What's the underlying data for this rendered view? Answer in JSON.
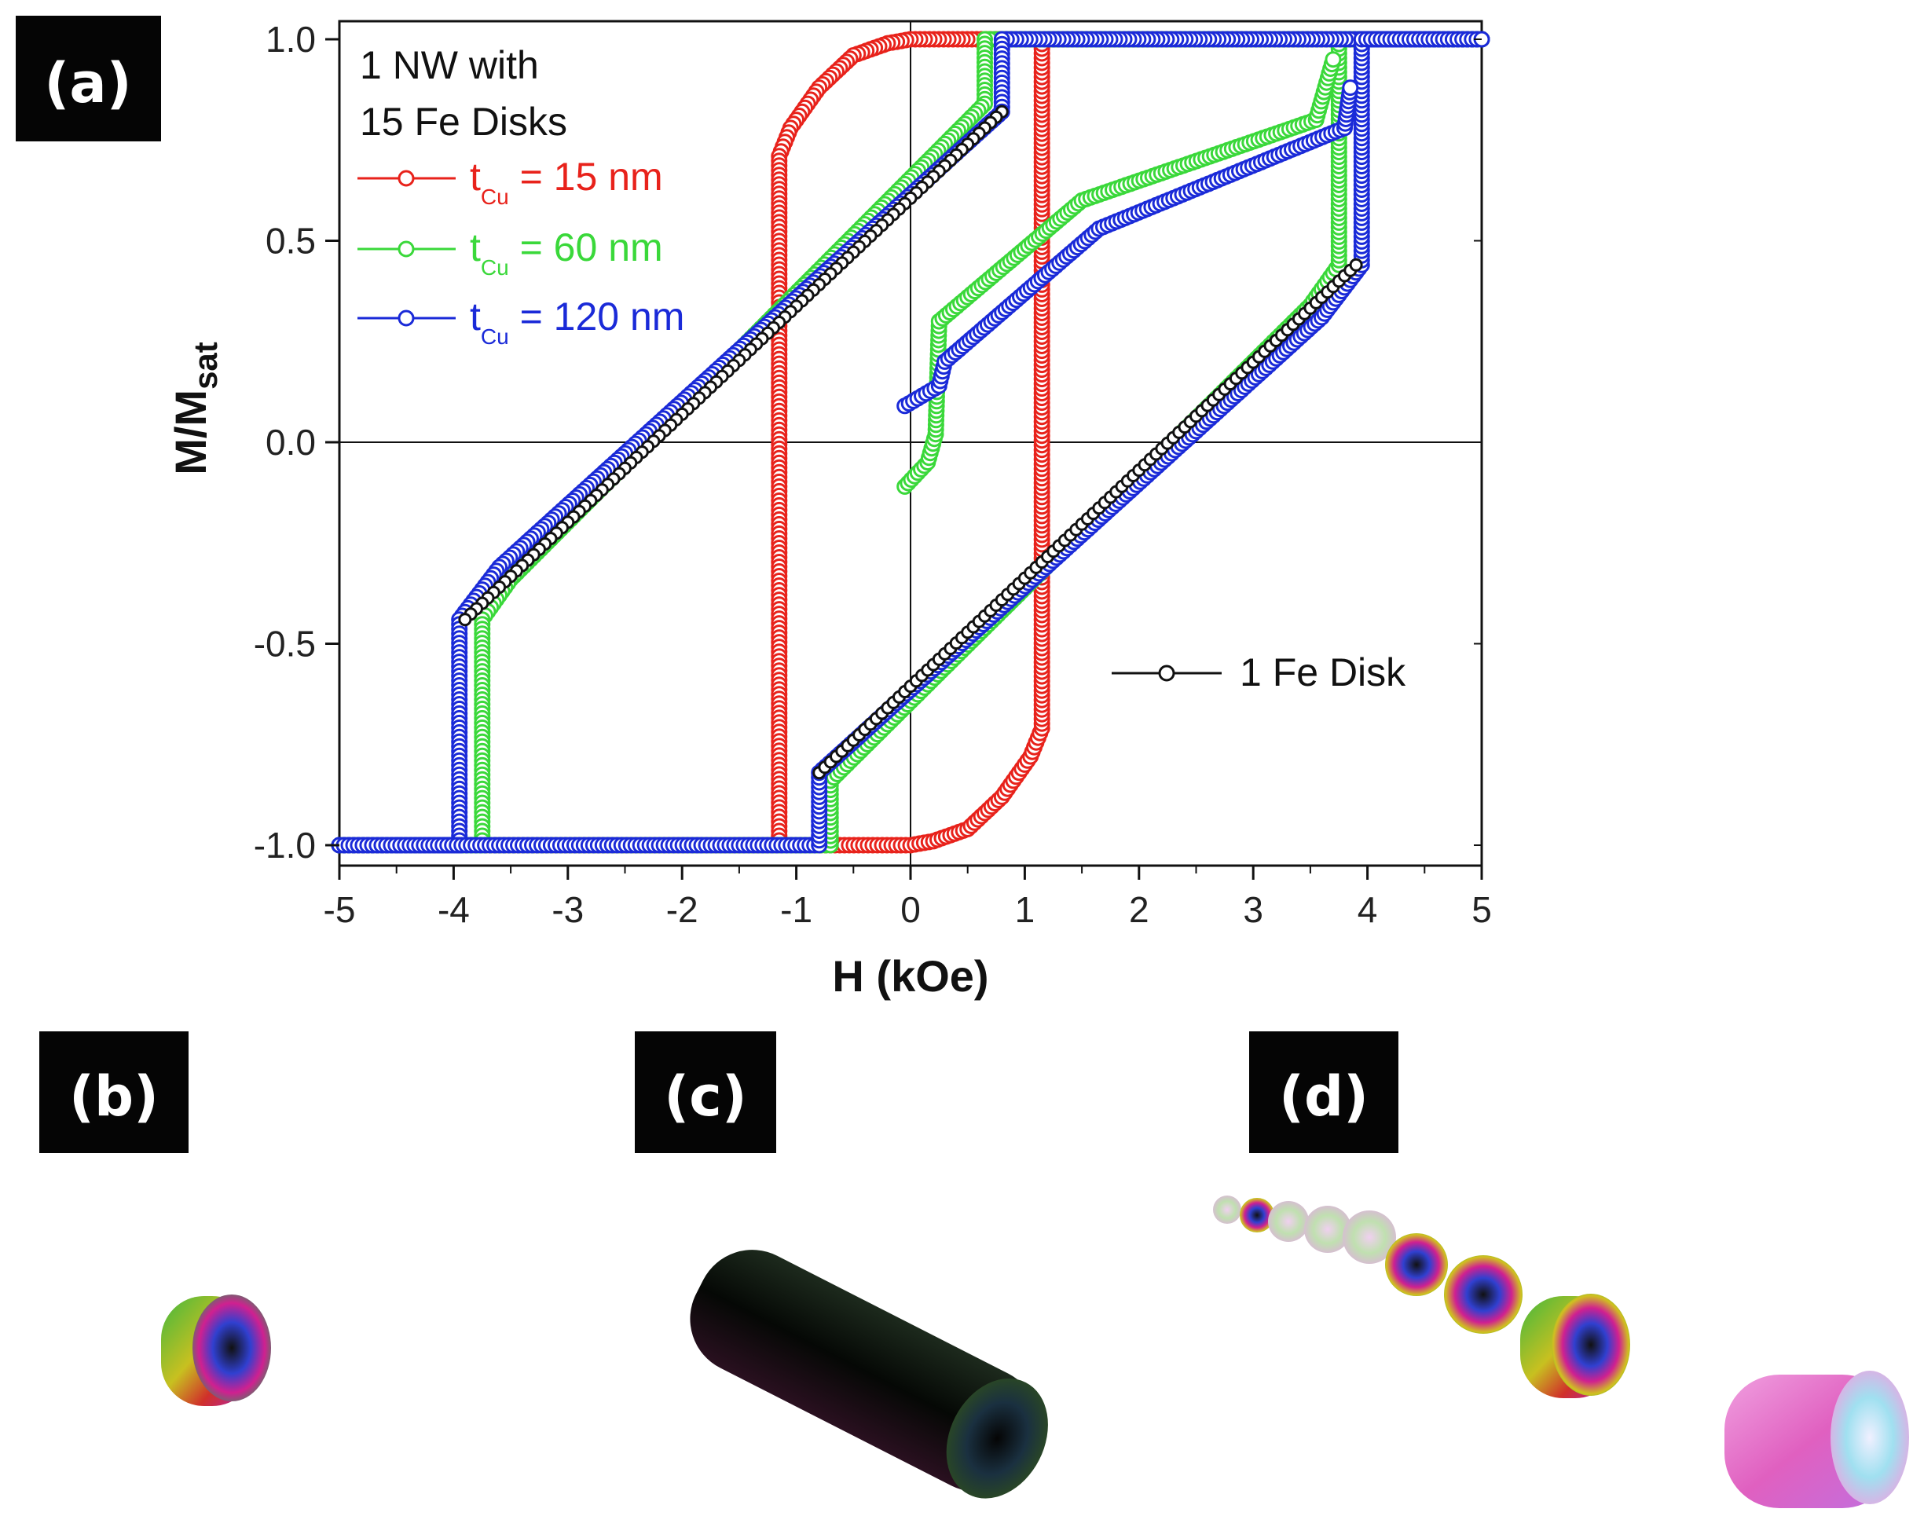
{
  "panels": {
    "a": "(a)",
    "b": "(b)",
    "c": "(c)",
    "d": "(d)"
  },
  "chart_data": {
    "type": "line",
    "xlabel": "H (kOe)",
    "ylabel_main": "M/M",
    "ylabel_sub": "sat",
    "xlim": [
      -5,
      5
    ],
    "ylim": [
      -1.05,
      1.05
    ],
    "xticks": [
      "-5",
      "-4",
      "-3",
      "-2",
      "-1",
      "0",
      "1",
      "2",
      "3",
      "4",
      "5"
    ],
    "yticks": [
      "-1.0",
      "-0.5",
      "0.0",
      "0.5",
      "1.0"
    ],
    "legend_title_line1": "1 NW with",
    "legend_title_line2": "15 Fe Disks",
    "legend_placement": "top-left",
    "series": [
      {
        "label_main": "t",
        "label_sub": "Cu",
        "label_rest": " = 15 nm",
        "color": "#e8221b",
        "descending": [
          [
            5,
            1
          ],
          [
            0,
            1
          ],
          [
            -0.2,
            0.99
          ],
          [
            -0.5,
            0.96
          ],
          [
            -0.8,
            0.88
          ],
          [
            -1.05,
            0.78
          ],
          [
            -1.15,
            0.71
          ],
          [
            -1.15,
            -1
          ],
          [
            -5,
            -1
          ]
        ],
        "ascending": [
          [
            -5,
            -1
          ],
          [
            0,
            -1
          ],
          [
            0.2,
            -0.99
          ],
          [
            0.5,
            -0.96
          ],
          [
            0.8,
            -0.88
          ],
          [
            1.05,
            -0.78
          ],
          [
            1.15,
            -0.71
          ],
          [
            1.15,
            1
          ],
          [
            5,
            1
          ]
        ]
      },
      {
        "label_main": "t",
        "label_sub": "Cu",
        "label_rest": " = 60 nm",
        "color": "#3ad83a",
        "descending": [
          [
            5,
            1
          ],
          [
            0.65,
            1
          ],
          [
            0.65,
            0.84
          ],
          [
            -3.5,
            -0.34
          ],
          [
            -3.75,
            -0.44
          ],
          [
            -3.75,
            -1
          ],
          [
            -5,
            -1
          ]
        ],
        "ascending": [
          [
            -5,
            -1
          ],
          [
            -0.7,
            -1
          ],
          [
            -0.7,
            -0.84
          ],
          [
            3.5,
            0.34
          ],
          [
            3.75,
            0.44
          ],
          [
            3.75,
            1
          ],
          [
            5,
            1
          ]
        ],
        "inner_branch": [
          [
            -0.05,
            -0.11
          ],
          [
            0.15,
            -0.05
          ],
          [
            0.22,
            0.02
          ],
          [
            0.25,
            0.3
          ],
          [
            1.5,
            0.6
          ],
          [
            3.55,
            0.8
          ],
          [
            3.7,
            0.95
          ]
        ]
      },
      {
        "label_main": "t",
        "label_sub": "Cu",
        "label_rest": " = 120 nm",
        "color": "#1a2ad8",
        "descending": [
          [
            5,
            1
          ],
          [
            0.8,
            1
          ],
          [
            0.8,
            0.82
          ],
          [
            -3.6,
            -0.31
          ],
          [
            -3.95,
            -0.44
          ],
          [
            -3.95,
            -1
          ],
          [
            -5,
            -1
          ]
        ],
        "ascending": [
          [
            -5,
            -1
          ],
          [
            -0.8,
            -1
          ],
          [
            -0.8,
            -0.82
          ],
          [
            3.6,
            0.31
          ],
          [
            3.95,
            0.44
          ],
          [
            3.95,
            1
          ],
          [
            5,
            1
          ]
        ],
        "inner_branch": [
          [
            -0.05,
            0.09
          ],
          [
            0.25,
            0.14
          ],
          [
            0.3,
            0.2
          ],
          [
            1.65,
            0.53
          ],
          [
            3.8,
            0.78
          ],
          [
            3.85,
            0.88
          ]
        ]
      }
    ],
    "reference": {
      "label": "1 Fe Disk",
      "color": "#111111",
      "descending": [
        [
          0.8,
          0.82
        ],
        [
          -3.9,
          -0.44
        ]
      ],
      "ascending": [
        [
          -0.8,
          -0.82
        ],
        [
          3.9,
          0.44
        ]
      ]
    }
  }
}
